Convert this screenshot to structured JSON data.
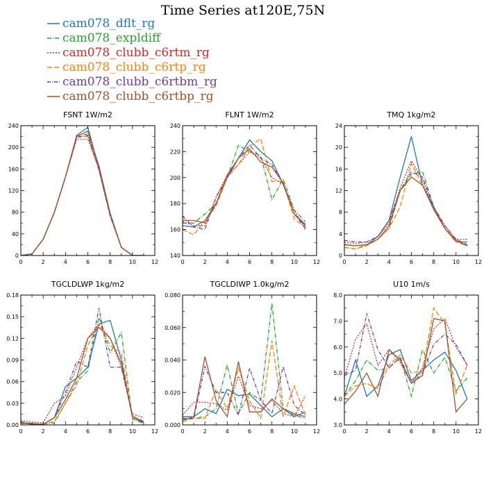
{
  "title": "Time Series at120E,75N",
  "legend": [
    {
      "name": "cam078_dflt_rg",
      "color": "#1f77b4",
      "dash": ""
    },
    {
      "name": "cam078_expldiff",
      "color": "#2ca02c",
      "dash": "6,2,1,2"
    },
    {
      "name": "cam078_clubb_c6rtm_rg",
      "color": "#d62728",
      "dash": "2,2"
    },
    {
      "name": "cam078_clubb_c6rtp_rg",
      "color": "#ff7f0e",
      "dash": "7,3"
    },
    {
      "name": "cam078_clubb_c6rtbm_rg",
      "color": "#6a3d9a",
      "dash": "5,2,1,2"
    },
    {
      "name": "cam078_clubb_c6rtbp_rg",
      "color": "#a0522d",
      "dash": ""
    }
  ],
  "chart_data": [
    {
      "type": "line",
      "title": "FSNT   1W/m2",
      "xlim": [
        0,
        12
      ],
      "ylim": [
        0,
        240
      ],
      "xticks": [
        0,
        2,
        4,
        6,
        8,
        10,
        12
      ],
      "yticks": [
        0,
        40,
        80,
        120,
        160,
        200,
        240
      ],
      "ytick_labels": [
        "0",
        "40",
        "80",
        "120",
        "160",
        "200",
        "240"
      ],
      "x": [
        0,
        1,
        2,
        3,
        4,
        5,
        6,
        7,
        8,
        9,
        10,
        11
      ],
      "series": [
        {
          "name": "cam078_dflt_rg",
          "values": [
            0,
            3,
            30,
            80,
            145,
            222,
            237,
            160,
            75,
            15,
            0,
            0
          ]
        },
        {
          "name": "cam078_expldiff",
          "values": [
            0,
            3,
            30,
            80,
            145,
            220,
            225,
            158,
            73,
            15,
            0,
            0
          ]
        },
        {
          "name": "cam078_clubb_c6rtm_rg",
          "values": [
            0,
            3,
            30,
            80,
            145,
            215,
            215,
            160,
            75,
            15,
            0,
            0
          ]
        },
        {
          "name": "cam078_clubb_c6rtp_rg",
          "values": [
            0,
            3,
            30,
            80,
            145,
            220,
            220,
            165,
            75,
            15,
            0,
            0
          ]
        },
        {
          "name": "cam078_clubb_c6rtbm_rg",
          "values": [
            0,
            3,
            30,
            80,
            145,
            218,
            222,
            158,
            73,
            15,
            0,
            0
          ]
        },
        {
          "name": "cam078_clubb_c6rtbp_rg",
          "values": [
            0,
            3,
            30,
            80,
            145,
            220,
            230,
            165,
            78,
            15,
            0,
            0
          ]
        }
      ]
    },
    {
      "type": "line",
      "title": "FLNT   1W/m2",
      "xlim": [
        0,
        12
      ],
      "ylim": [
        140,
        240
      ],
      "xticks": [
        0,
        2,
        4,
        6,
        8,
        10,
        12
      ],
      "yticks": [
        140,
        160,
        180,
        200,
        220,
        240
      ],
      "ytick_labels": [
        "140",
        "160",
        "180",
        "200",
        "220",
        "240"
      ],
      "x": [
        0,
        1,
        2,
        3,
        4,
        5,
        6,
        7,
        8,
        9,
        10,
        11
      ],
      "series": [
        {
          "name": "cam078_dflt_rg",
          "values": [
            163,
            162,
            167,
            180,
            200,
            215,
            229,
            220,
            213,
            195,
            172,
            164
          ]
        },
        {
          "name": "cam078_expldiff",
          "values": [
            165,
            165,
            172,
            180,
            200,
            225,
            220,
            217,
            183,
            199,
            175,
            166
          ]
        },
        {
          "name": "cam078_clubb_c6rtm_rg",
          "values": [
            166,
            163,
            163,
            185,
            202,
            210,
            220,
            215,
            200,
            195,
            175,
            160
          ]
        },
        {
          "name": "cam078_clubb_c6rtp_rg",
          "values": [
            160,
            156,
            167,
            178,
            200,
            210,
            224,
            230,
            197,
            197,
            168,
            162
          ]
        },
        {
          "name": "cam078_clubb_c6rtbm_rg",
          "values": [
            170,
            162,
            160,
            185,
            200,
            215,
            225,
            215,
            210,
            195,
            172,
            161
          ]
        },
        {
          "name": "cam078_clubb_c6rtbp_rg",
          "values": [
            167,
            167,
            165,
            180,
            202,
            215,
            222,
            212,
            208,
            196,
            172,
            163
          ]
        }
      ]
    },
    {
      "type": "line",
      "title": "TMQ   1kg/m2",
      "xlim": [
        0,
        12
      ],
      "ylim": [
        0,
        24
      ],
      "xticks": [
        0,
        2,
        4,
        6,
        8,
        10,
        12
      ],
      "yticks": [
        0,
        4,
        8,
        12,
        16,
        20,
        24
      ],
      "ytick_labels": [
        "0",
        "4",
        "8",
        "12",
        "16",
        "20",
        "24"
      ],
      "x": [
        0,
        1,
        2,
        3,
        4,
        5,
        6,
        7,
        8,
        9,
        10,
        11
      ],
      "series": [
        {
          "name": "cam078_dflt_rg",
          "values": [
            2.0,
            1.8,
            2.0,
            3.5,
            6.5,
            14.5,
            22.0,
            13.0,
            9.0,
            5.0,
            2.5,
            2.5
          ]
        },
        {
          "name": "cam078_expldiff",
          "values": [
            1.5,
            1.2,
            2.0,
            3.0,
            5.0,
            12.0,
            15.0,
            15.5,
            9.0,
            5.0,
            2.5,
            2.5
          ]
        },
        {
          "name": "cam078_clubb_c6rtm_rg",
          "values": [
            2.5,
            2.2,
            2.5,
            3.5,
            6.0,
            12.5,
            17.5,
            14.0,
            8.5,
            5.5,
            3.0,
            3.0
          ]
        },
        {
          "name": "cam078_clubb_c6rtp_rg",
          "values": [
            1.5,
            1.2,
            1.8,
            3.0,
            5.0,
            9.0,
            17.0,
            13.0,
            8.5,
            5.0,
            2.5,
            1.8
          ]
        },
        {
          "name": "cam078_clubb_c6rtbm_rg",
          "values": [
            2.8,
            2.5,
            2.5,
            3.5,
            6.5,
            12.0,
            15.5,
            14.5,
            9.0,
            5.5,
            3.0,
            2.0
          ]
        },
        {
          "name": "cam078_clubb_c6rtbp_rg",
          "values": [
            2.0,
            1.8,
            2.0,
            3.0,
            5.5,
            12.0,
            14.5,
            13.0,
            8.5,
            5.0,
            2.8,
            1.8
          ]
        }
      ]
    },
    {
      "type": "line",
      "title": "TGCLDLWP   1kg/m2",
      "xlim": [
        0,
        12
      ],
      "ylim": [
        0,
        0.18
      ],
      "xticks": [
        0,
        2,
        4,
        6,
        8,
        10,
        12
      ],
      "yticks": [
        0,
        0.03,
        0.06,
        0.09,
        0.12,
        0.15,
        0.18
      ],
      "ytick_labels": [
        "0.00",
        "0.03",
        "0.06",
        "0.09",
        "0.12",
        "0.15",
        "0.18"
      ],
      "x": [
        0,
        1,
        2,
        3,
        4,
        5,
        6,
        7,
        8,
        9,
        10,
        11
      ],
      "series": [
        {
          "name": "cam078_dflt_rg",
          "values": [
            0.003,
            0.001,
            0.001,
            0.01,
            0.053,
            0.065,
            0.08,
            0.14,
            0.145,
            0.09,
            0.01,
            0.003
          ]
        },
        {
          "name": "cam078_expldiff",
          "values": [
            0.002,
            0.001,
            0.001,
            0.003,
            0.03,
            0.06,
            0.075,
            0.15,
            0.1,
            0.128,
            0.008,
            0.002
          ]
        },
        {
          "name": "cam078_clubb_c6rtm_rg",
          "values": [
            0.006,
            0.004,
            0.003,
            0.03,
            0.04,
            0.08,
            0.12,
            0.14,
            0.12,
            0.08,
            0.015,
            0.01
          ]
        },
        {
          "name": "cam078_clubb_c6rtp_rg",
          "values": [
            0.003,
            0.002,
            0.001,
            0.005,
            0.03,
            0.055,
            0.11,
            0.14,
            0.11,
            0.1,
            0.01,
            0.005
          ]
        },
        {
          "name": "cam078_clubb_c6rtbm_rg",
          "values": [
            0.004,
            0.002,
            0.001,
            0.01,
            0.045,
            0.088,
            0.08,
            0.162,
            0.08,
            0.08,
            0.012,
            0.005
          ]
        },
        {
          "name": "cam078_clubb_c6rtbp_rg",
          "values": [
            0.003,
            0.002,
            0.001,
            0.01,
            0.035,
            0.065,
            0.12,
            0.135,
            0.12,
            0.085,
            0.012,
            0.004
          ]
        }
      ]
    },
    {
      "type": "line",
      "title": "TGCLDIWP   1.0kg/m2",
      "xlim": [
        0,
        12
      ],
      "ylim": [
        0,
        0.08
      ],
      "xticks": [
        0,
        2,
        4,
        6,
        8,
        10,
        12
      ],
      "yticks": [
        0,
        0.02,
        0.04,
        0.06,
        0.08
      ],
      "ytick_labels": [
        "0.000",
        "0.020",
        "0.040",
        "0.060",
        "0.080"
      ],
      "x": [
        0,
        1,
        2,
        3,
        4,
        5,
        6,
        7,
        8,
        9,
        10,
        11
      ],
      "series": [
        {
          "name": "cam078_dflt_rg",
          "values": [
            0.005,
            0.005,
            0.01,
            0.007,
            0.022,
            0.018,
            0.019,
            0.012,
            0.005,
            0.01,
            0.005,
            0.008
          ]
        },
        {
          "name": "cam078_expldiff",
          "values": [
            0.003,
            0.004,
            0.005,
            0.01,
            0.037,
            0.007,
            0.02,
            0.015,
            0.075,
            0.01,
            0.006,
            0.004
          ]
        },
        {
          "name": "cam078_clubb_c6rtm_rg",
          "values": [
            0.006,
            0.014,
            0.014,
            0.013,
            0.009,
            0.03,
            0.012,
            0.01,
            0.015,
            0.007,
            0.005,
            0.018
          ]
        },
        {
          "name": "cam078_clubb_c6rtp_rg",
          "values": [
            0.002,
            0.004,
            0.004,
            0.022,
            0.01,
            0.035,
            0.015,
            0.004,
            0.052,
            0.005,
            0.024,
            0.006
          ]
        },
        {
          "name": "cam078_clubb_c6rtbm_rg",
          "values": [
            0.004,
            0.004,
            0.036,
            0.02,
            0.02,
            0.006,
            0.035,
            0.015,
            0.007,
            0.036,
            0.012,
            0.006
          ]
        },
        {
          "name": "cam078_clubb_c6rtbp_rg",
          "values": [
            0.003,
            0.005,
            0.042,
            0.015,
            0.005,
            0.039,
            0.008,
            0.008,
            0.016,
            0.01,
            0.007,
            0.005
          ]
        }
      ]
    },
    {
      "type": "line",
      "title": "U10   1m/s",
      "xlim": [
        0,
        12
      ],
      "ylim": [
        3,
        8
      ],
      "xticks": [
        0,
        2,
        4,
        6,
        8,
        10,
        12
      ],
      "yticks": [
        3,
        4,
        5,
        6,
        7,
        8
      ],
      "ytick_labels": [
        "3.0",
        "4.0",
        "5.0",
        "6.0",
        "7.0",
        "8.0"
      ],
      "x": [
        0,
        1,
        2,
        3,
        4,
        5,
        6,
        7,
        8,
        9,
        10,
        11
      ],
      "series": [
        {
          "name": "cam078_dflt_rg",
          "values": [
            4.1,
            5.5,
            4.1,
            4.5,
            5.7,
            5.9,
            4.7,
            5.1,
            5.5,
            5.8,
            5.1,
            4.0
          ]
        },
        {
          "name": "cam078_expldiff",
          "values": [
            4.1,
            4.7,
            5.5,
            5.1,
            5.2,
            5.6,
            4.1,
            5.9,
            5.0,
            5.6,
            4.3,
            4.8
          ]
        },
        {
          "name": "cam078_clubb_c6rtm_rg",
          "values": [
            4.8,
            6.3,
            6.9,
            5.3,
            5.9,
            5.4,
            4.6,
            5.2,
            6.7,
            7.1,
            6.0,
            5.3
          ]
        },
        {
          "name": "cam078_clubb_c6rtp_rg",
          "values": [
            4.1,
            4.5,
            4.6,
            4.4,
            5.3,
            5.7,
            5.0,
            5.1,
            7.5,
            6.9,
            4.2,
            5.3
          ]
        },
        {
          "name": "cam078_clubb_c6rtbm_rg",
          "values": [
            4.9,
            5.1,
            7.3,
            5.9,
            5.2,
            5.6,
            4.6,
            5.0,
            6.1,
            6.5,
            6.1,
            5.3
          ]
        },
        {
          "name": "cam078_clubb_c6rtbp_rg",
          "values": [
            3.8,
            4.3,
            5.0,
            4.1,
            5.9,
            5.5,
            4.6,
            4.9,
            7.1,
            7.0,
            3.5,
            4.0
          ]
        }
      ]
    }
  ]
}
